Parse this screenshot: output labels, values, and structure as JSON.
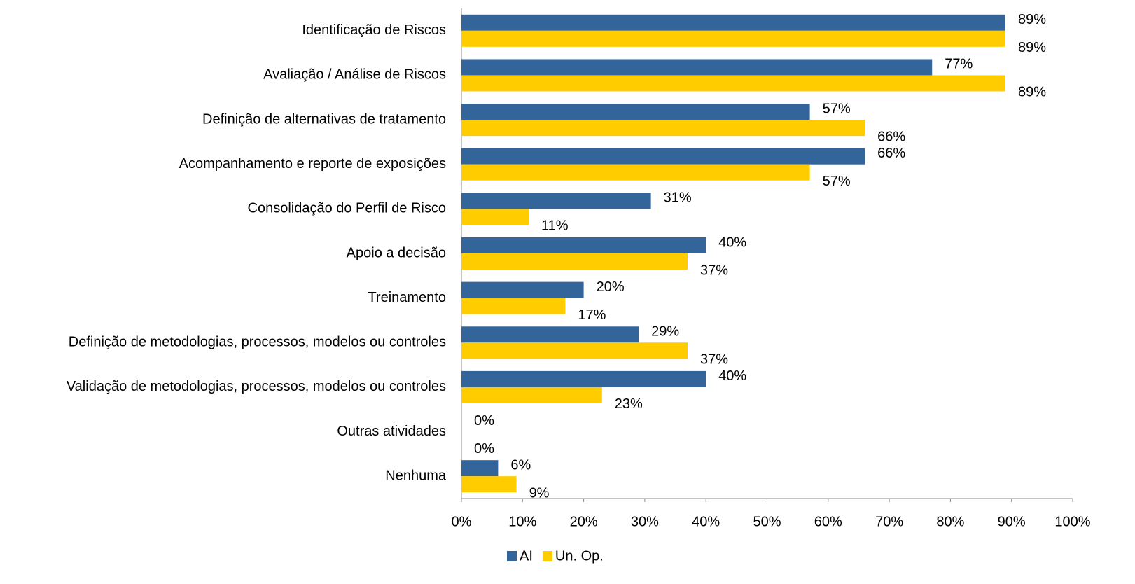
{
  "chart_data": {
    "type": "bar",
    "orientation": "horizontal",
    "categories": [
      "Identificação de Riscos",
      "Avaliação / Análise de Riscos",
      "Definição de alternativas de tratamento",
      "Acompanhamento e reporte de exposições",
      "Consolidação do Perfil de Risco",
      "Apoio a decisão",
      "Treinamento",
      "Definição de metodologias, processos, modelos ou controles",
      "Validação de metodologias, processos, modelos ou controles",
      "Outras atividades",
      "Nenhuma"
    ],
    "series": [
      {
        "name": "AI",
        "color": "#34659a",
        "values": [
          89,
          77,
          57,
          66,
          31,
          40,
          20,
          29,
          40,
          0,
          6
        ],
        "value_labels": [
          "89%",
          "77%",
          "57%",
          "66%",
          "31%",
          "40%",
          "20%",
          "29%",
          "40%",
          "0%",
          "6%"
        ]
      },
      {
        "name": "Un. Op.",
        "color": "#ffcc00",
        "values": [
          89,
          89,
          66,
          57,
          11,
          37,
          17,
          37,
          23,
          0,
          9
        ],
        "value_labels": [
          "89%",
          "89%",
          "66%",
          "57%",
          "11%",
          "37%",
          "17%",
          "37%",
          "23%",
          "0%",
          "9%"
        ]
      }
    ],
    "xlim": [
      0,
      100
    ],
    "xticks": [
      {
        "value": 0,
        "label": "0%"
      },
      {
        "value": 10,
        "label": "10%"
      },
      {
        "value": 20,
        "label": "20%"
      },
      {
        "value": 30,
        "label": "30%"
      },
      {
        "value": 40,
        "label": "40%"
      },
      {
        "value": 50,
        "label": "50%"
      },
      {
        "value": 60,
        "label": "60%"
      },
      {
        "value": 70,
        "label": "70%"
      },
      {
        "value": 80,
        "label": "80%"
      },
      {
        "value": 90,
        "label": "90%"
      },
      {
        "value": 100,
        "label": "100%"
      }
    ],
    "legend": "bottom"
  }
}
